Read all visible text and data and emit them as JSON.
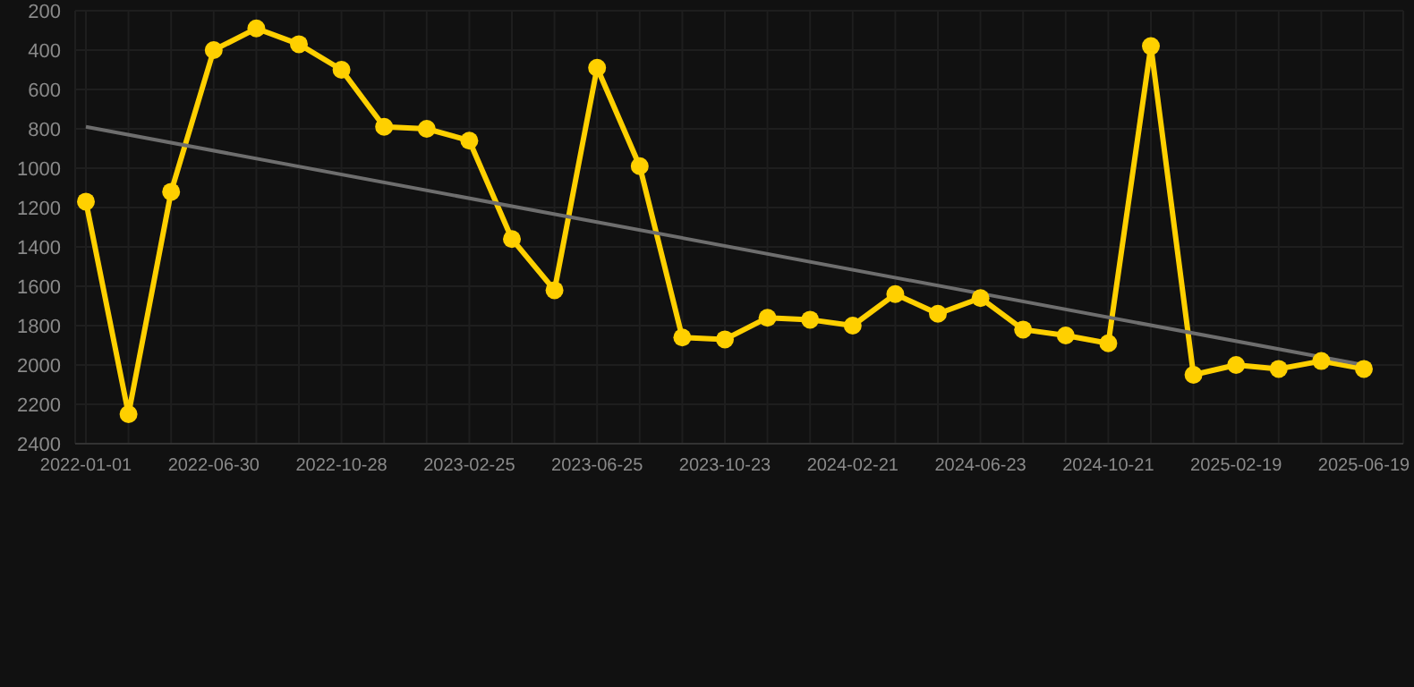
{
  "chart_data": {
    "type": "line",
    "categories": [
      "2022-01-01",
      null,
      null,
      "2022-06-30",
      null,
      null,
      "2022-10-28",
      null,
      null,
      "2023-02-25",
      null,
      null,
      "2023-06-25",
      null,
      null,
      "2023-10-23",
      null,
      null,
      "2024-02-21",
      null,
      null,
      "2024-06-23",
      null,
      null,
      "2024-10-21",
      null,
      null,
      "2025-02-19",
      null,
      null,
      "2025-06-19"
    ],
    "series": [
      {
        "color": "#ffd000",
        "marker": "circle",
        "values": [
          1170,
          2250,
          1120,
          400,
          290,
          370,
          500,
          790,
          800,
          860,
          1360,
          1620,
          490,
          990,
          1860,
          1870,
          1760,
          1770,
          1800,
          1640,
          1740,
          1660,
          1820,
          1850,
          1890,
          380,
          2050,
          2000,
          2020,
          1980,
          2020
        ]
      },
      {
        "type": "line",
        "color": "#6e6e6e",
        "marker": "none",
        "values": [
          790,
          null,
          null,
          null,
          null,
          null,
          null,
          null,
          null,
          null,
          null,
          null,
          null,
          null,
          null,
          null,
          null,
          null,
          null,
          null,
          null,
          null,
          null,
          null,
          null,
          null,
          null,
          null,
          null,
          null,
          2000
        ]
      }
    ],
    "ylim": [
      2400,
      200
    ],
    "yticks": [
      200,
      400,
      600,
      800,
      1000,
      1200,
      1400,
      1600,
      1800,
      2000,
      2200,
      2400
    ],
    "grid": true
  }
}
